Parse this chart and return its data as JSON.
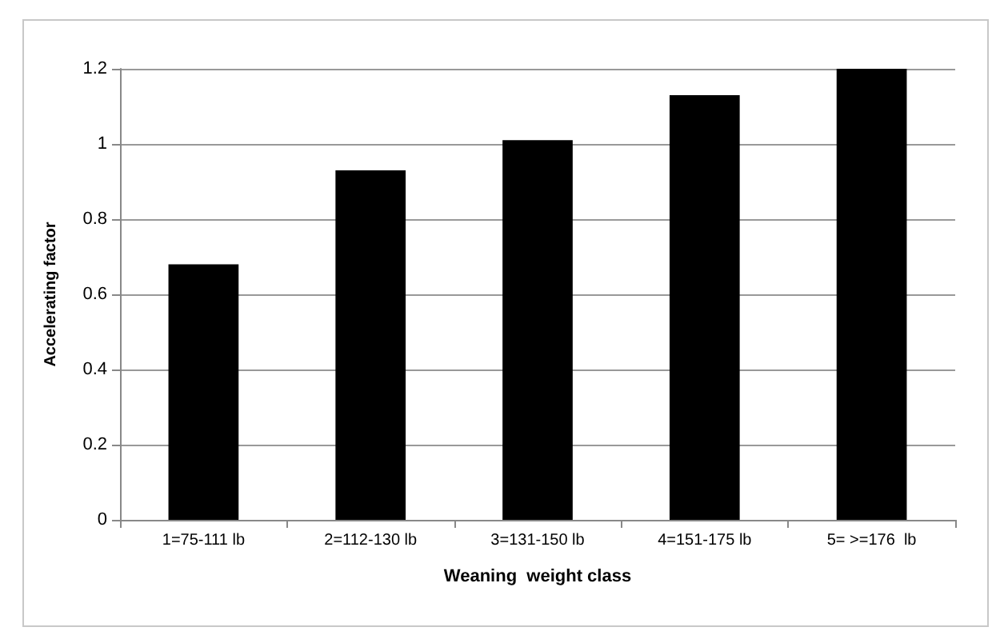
{
  "chart_data": {
    "type": "bar",
    "xlabel": "Weaning  weight class",
    "ylabel": "Accelerating factor",
    "categories": [
      "1=75-111 lb",
      "2=112-130 lb",
      "3=131-150 lb",
      "4=151-175 lb",
      "5= >=176  lb"
    ],
    "values": [
      0.68,
      0.93,
      1.01,
      1.13,
      1.2
    ],
    "color": "#000000",
    "ylim": [
      0,
      1.2
    ],
    "yticks": [
      0,
      0.2,
      0.4,
      0.6,
      0.8,
      1,
      1.2
    ],
    "grid": "y"
  }
}
